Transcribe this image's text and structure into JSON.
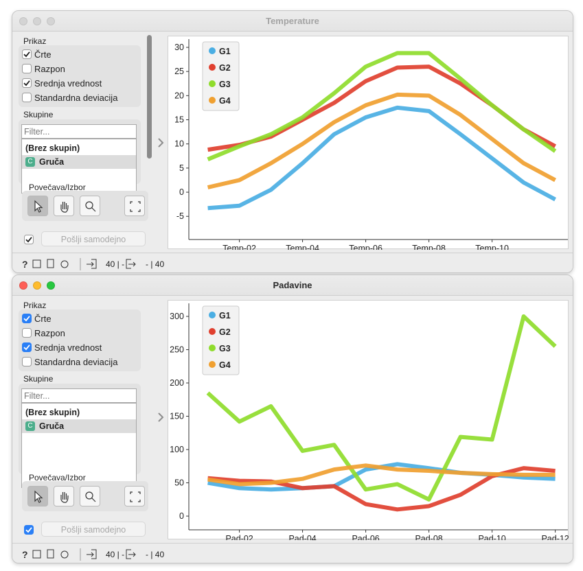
{
  "windows": [
    {
      "title": "Temperature",
      "active": false,
      "display_label": "Prikaz",
      "options": [
        {
          "label": "Črte",
          "checked": true
        },
        {
          "label": "Razpon",
          "checked": false
        },
        {
          "label": "Srednja vrednost",
          "checked": true
        },
        {
          "label": "Standardna deviacija",
          "checked": false
        }
      ],
      "groups_label": "Skupine",
      "filter_placeholder": "Filter...",
      "group_items": [
        {
          "label": "(Brez skupin)"
        },
        {
          "label": "Gruča",
          "icon": "C"
        }
      ],
      "selected_item": 1,
      "zoom_label": "Povečava/Izbor",
      "send_auto": {
        "label": "Pošlji samodejno",
        "checked": true
      },
      "status": {
        "inputs": "40 | -",
        "outputs": "- | 40"
      },
      "chart": {
        "type": "line",
        "categories": [
          null,
          "Temp-02",
          null,
          "Temp-04",
          null,
          "Temp-06",
          null,
          "Temp-08",
          null,
          "Temp-10",
          null,
          null
        ],
        "ylim": [
          -9.8,
          31.7
        ],
        "yticks": [
          -5,
          0,
          5,
          10,
          15,
          20,
          25,
          30
        ],
        "series": [
          {
            "name": "G1",
            "color": "#4aaee3",
            "values": [
              -3.3,
              -2.8,
              0.5,
              6,
              12,
              15.5,
              17.5,
              16.8,
              12,
              7,
              2,
              -1.5
            ]
          },
          {
            "name": "G2",
            "color": "#e0402f",
            "values": [
              8.8,
              9.8,
              11.5,
              15,
              18.5,
              23,
              25.8,
              26,
              22.5,
              18,
              13,
              9.5
            ]
          },
          {
            "name": "G3",
            "color": "#8fdc2c",
            "values": [
              6.8,
              9.5,
              12,
              15.5,
              20.5,
              26,
              28.8,
              28.8,
              23.5,
              18,
              13,
              8.5
            ]
          },
          {
            "name": "G4",
            "color": "#f0a030",
            "values": [
              1,
              2.5,
              6,
              10,
              14.5,
              18,
              20.2,
              20,
              16,
              11,
              6,
              2.5
            ]
          }
        ]
      }
    },
    {
      "title": "Padavine",
      "active": true,
      "display_label": "Prikaz",
      "options": [
        {
          "label": "Črte",
          "checked": true
        },
        {
          "label": "Razpon",
          "checked": false
        },
        {
          "label": "Srednja vrednost",
          "checked": true
        },
        {
          "label": "Standardna deviacija",
          "checked": false
        }
      ],
      "groups_label": "Skupine",
      "filter_placeholder": "Filter...",
      "group_items": [
        {
          "label": "(Brez skupin)"
        },
        {
          "label": "Gruča",
          "icon": "C"
        }
      ],
      "selected_item": 1,
      "zoom_label": "Povečava/Izbor",
      "send_auto": {
        "label": "Pošlji samodejno",
        "checked": true
      },
      "status": {
        "inputs": "40 | -",
        "outputs": "- | 40"
      },
      "chart": {
        "type": "line",
        "categories": [
          null,
          "Pad-02",
          null,
          "Pad-04",
          null,
          "Pad-06",
          null,
          "Pad-08",
          null,
          "Pad-10",
          null,
          "Pad-12"
        ],
        "ylim": [
          -20.6,
          319.6
        ],
        "yticks": [
          0,
          50,
          100,
          150,
          200,
          250,
          300
        ],
        "series": [
          {
            "name": "G1",
            "color": "#4aaee3",
            "values": [
              50,
              42,
              40,
              42,
              45,
              70,
              78,
              72,
              65,
              62,
              58,
              56
            ]
          },
          {
            "name": "G2",
            "color": "#e0402f",
            "values": [
              57,
              53,
              52,
              42,
              45,
              18,
              10,
              15,
              32,
              60,
              72,
              68
            ]
          },
          {
            "name": "G3",
            "color": "#8fdc2c",
            "values": [
              185,
              142,
              165,
              98,
              107,
              40,
              48,
              25,
              119,
              115,
              300,
              255
            ]
          },
          {
            "name": "G4",
            "color": "#f0a030",
            "values": [
              55,
              48,
              50,
              56,
              70,
              76,
              70,
              68,
              65,
              63,
              62,
              62
            ]
          }
        ]
      }
    }
  ]
}
